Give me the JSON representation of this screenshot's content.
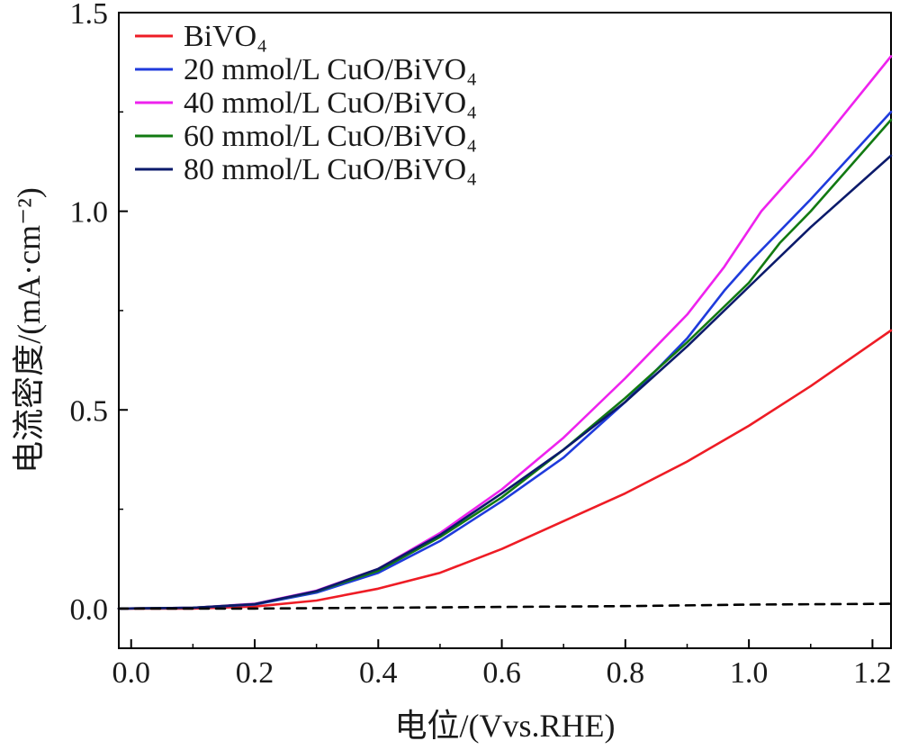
{
  "chart_data": {
    "type": "line",
    "xlabel": "电位/(Vvs.RHE)",
    "ylabel": "电流密度/(mA·cm⁻²)",
    "xlim": [
      -0.02,
      1.23
    ],
    "ylim": [
      -0.1,
      1.5
    ],
    "xticks": [
      "0.0",
      "0.2",
      "0.4",
      "0.6",
      "0.8",
      "1.0",
      "1.2"
    ],
    "yticks": [
      "0.0",
      "0.5",
      "1.0",
      "1.5"
    ],
    "legend_position": "top-left",
    "grid": false,
    "series": [
      {
        "name": "BiVO₄",
        "color": "#ee1c25",
        "x": [
          -0.02,
          0.1,
          0.2,
          0.3,
          0.4,
          0.5,
          0.6,
          0.7,
          0.8,
          0.9,
          1.0,
          1.1,
          1.23
        ],
        "y": [
          0.0,
          0.0,
          0.005,
          0.02,
          0.05,
          0.09,
          0.15,
          0.22,
          0.29,
          0.37,
          0.46,
          0.56,
          0.7
        ]
      },
      {
        "name": "20 mmol/L CuO/BiVO₄",
        "color": "#1f3bdc",
        "x": [
          -0.02,
          0.1,
          0.2,
          0.3,
          0.4,
          0.5,
          0.6,
          0.7,
          0.8,
          0.9,
          0.96,
          1.0,
          1.1,
          1.23
        ],
        "y": [
          0.0,
          0.002,
          0.01,
          0.04,
          0.09,
          0.17,
          0.27,
          0.38,
          0.52,
          0.68,
          0.8,
          0.87,
          1.03,
          1.25
        ]
      },
      {
        "name": "40 mmol/L CuO/BiVO₄",
        "color": "#ee22ee",
        "x": [
          -0.02,
          0.1,
          0.2,
          0.3,
          0.4,
          0.5,
          0.6,
          0.7,
          0.8,
          0.9,
          0.96,
          1.02,
          1.1,
          1.23
        ],
        "y": [
          0.0,
          0.002,
          0.012,
          0.045,
          0.1,
          0.19,
          0.3,
          0.43,
          0.58,
          0.74,
          0.86,
          1.0,
          1.14,
          1.39
        ]
      },
      {
        "name": "60 mmol/L CuO/BiVO₄",
        "color": "#127a12",
        "x": [
          -0.02,
          0.1,
          0.2,
          0.3,
          0.4,
          0.5,
          0.6,
          0.7,
          0.8,
          0.9,
          0.96,
          1.0,
          1.05,
          1.1,
          1.23
        ],
        "y": [
          0.0,
          0.002,
          0.011,
          0.043,
          0.095,
          0.18,
          0.28,
          0.4,
          0.53,
          0.67,
          0.76,
          0.82,
          0.92,
          1.0,
          1.23
        ]
      },
      {
        "name": "80 mmol/L CuO/BiVO₄",
        "color": "#0b1a6b",
        "x": [
          -0.02,
          0.1,
          0.2,
          0.3,
          0.4,
          0.5,
          0.6,
          0.7,
          0.8,
          0.9,
          1.0,
          1.1,
          1.23
        ],
        "y": [
          0.0,
          0.002,
          0.011,
          0.044,
          0.1,
          0.185,
          0.29,
          0.4,
          0.52,
          0.66,
          0.81,
          0.96,
          1.14
        ]
      },
      {
        "name": "",
        "color": "#000000",
        "dashed": true,
        "x": [
          -0.02,
          0.2,
          0.4,
          0.6,
          0.8,
          1.0,
          1.23
        ],
        "y": [
          0.0,
          0.0,
          0.002,
          0.004,
          0.006,
          0.01,
          0.012
        ]
      }
    ]
  }
}
